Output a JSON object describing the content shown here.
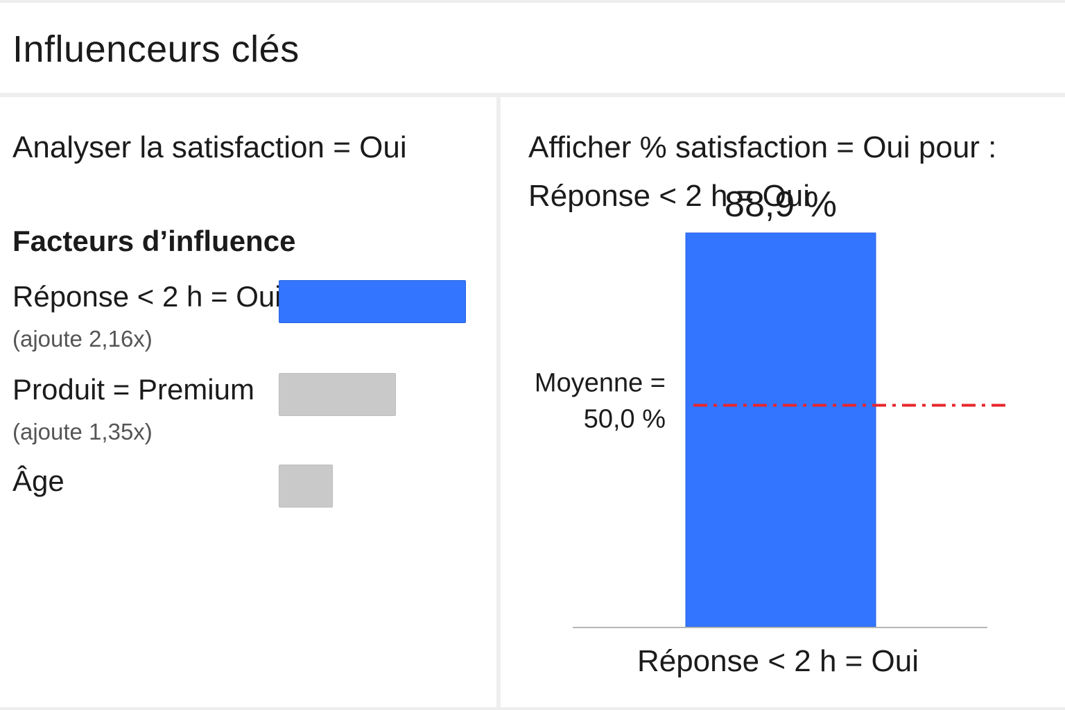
{
  "header": {
    "title": "Influenceurs clés"
  },
  "left": {
    "analyze_text": "Analyser la satisfaction = Oui",
    "factors_title": "Facteurs d’influence",
    "factors": [
      {
        "label": "Réponse < 2 h = Oui",
        "sub": "(ajoute 2,16x)",
        "value": 2.16,
        "active": true
      },
      {
        "label": "Produit = Premium",
        "sub": "(ajoute 1,35x)",
        "value": 1.35,
        "active": false
      },
      {
        "label": "Âge",
        "sub": "",
        "value": 0.62,
        "active": false
      }
    ]
  },
  "right": {
    "line1": "Afficher % satisfaction = Oui pour :",
    "line2": "Réponse < 2 h = Oui"
  },
  "chart_data": {
    "type": "bar",
    "categories": [
      "Réponse < 2 h = Oui"
    ],
    "values": [
      88.9
    ],
    "value_label": "88,9 %",
    "reference_line": {
      "value": 50.0,
      "label_line1": "Moyenne =",
      "label_line2": "50,0 %",
      "color": "#e8262b"
    },
    "ylim": [
      0,
      100
    ],
    "bar_color": "#3375ff"
  },
  "colors": {
    "accent": "#3375ff",
    "inactive": "#c9c9c9",
    "reference": "#e8262b"
  }
}
